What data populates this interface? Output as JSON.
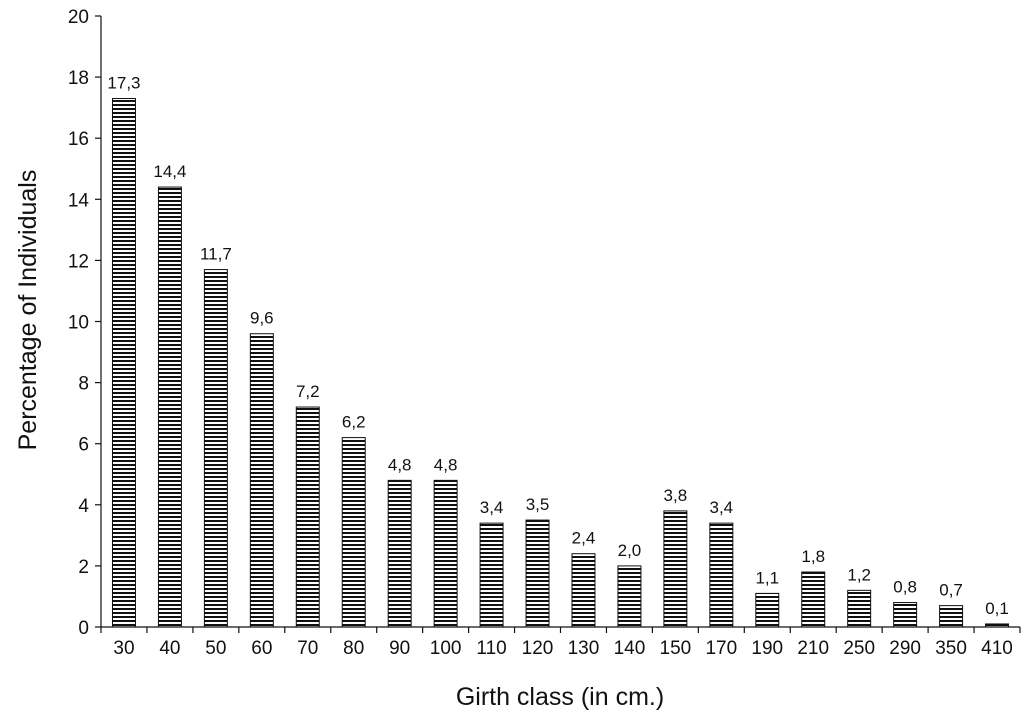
{
  "chart_data": {
    "type": "bar",
    "title": "",
    "xlabel": "Girth class (in cm.)",
    "ylabel": "Percentage of Individuals",
    "categories": [
      "30",
      "40",
      "50",
      "60",
      "70",
      "80",
      "90",
      "100",
      "110",
      "120",
      "130",
      "140",
      "150",
      "170",
      "190",
      "210",
      "250",
      "290",
      "350",
      "410"
    ],
    "values": [
      17.3,
      14.4,
      11.7,
      9.6,
      7.2,
      6.2,
      4.8,
      4.8,
      3.4,
      3.5,
      2.4,
      2.0,
      3.8,
      3.4,
      1.1,
      1.8,
      1.2,
      0.8,
      0.7,
      0.1
    ],
    "data_labels": [
      "17,3",
      "14,4",
      "11,7",
      "9,6",
      "7,2",
      "6,2",
      "4,8",
      "4,8",
      "3,4",
      "3,5",
      "2,4",
      "2,0",
      "3,8",
      "3,4",
      "1,1",
      "1,8",
      "1,2",
      "0,8",
      "0,7",
      "0,1"
    ],
    "ylim": [
      0,
      20
    ],
    "yticks": [
      "0",
      "2",
      "4",
      "6",
      "8",
      "10",
      "12",
      "14",
      "16",
      "18",
      "20"
    ],
    "grid": false,
    "legend": "none",
    "bar_fill": "horizontal-stripes",
    "colors": {
      "bar_stripe": "#111111",
      "bar_bg": "#ffffff",
      "axis": "#111111",
      "text": "#111111"
    }
  }
}
